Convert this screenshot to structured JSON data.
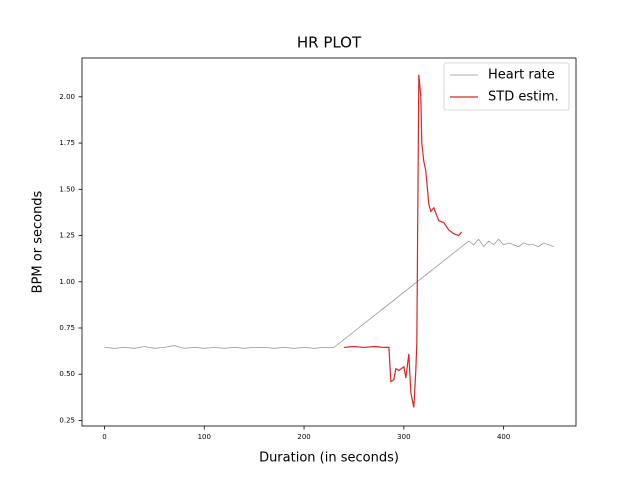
{
  "chart_data": {
    "type": "line",
    "title": "HR PLOT",
    "x_label": "Duration (in seconds)",
    "y_label": "BPM or seconds",
    "xlim": [
      -22.5,
      472.5
    ],
    "ylim": [
      0.22,
      2.21
    ],
    "xticks": [
      0,
      100,
      200,
      300,
      400
    ],
    "yticks": [
      0.25,
      {
        "value": 0.5,
        "label": "0.50"
      },
      0.75,
      {
        "value": 1.0,
        "label": "1.00"
      },
      1.25,
      {
        "value": 1.5,
        "label": "1.50"
      },
      1.75,
      {
        "value": 2.0,
        "label": "2.00"
      }
    ],
    "legend": "upper right",
    "series": [
      {
        "name": "Heart rate",
        "color": "#999999",
        "x": [
          0,
          10,
          20,
          30,
          40,
          50,
          60,
          70,
          80,
          90,
          100,
          110,
          120,
          130,
          140,
          150,
          160,
          170,
          180,
          190,
          200,
          210,
          220,
          230,
          365,
          370,
          375,
          380,
          385,
          390,
          395,
          400,
          405,
          410,
          415,
          420,
          425,
          430,
          435,
          440,
          445,
          450
        ],
        "values": [
          0.645,
          0.64,
          0.645,
          0.64,
          0.65,
          0.64,
          0.645,
          0.655,
          0.64,
          0.645,
          0.64,
          0.645,
          0.64,
          0.645,
          0.64,
          0.645,
          0.645,
          0.64,
          0.645,
          0.64,
          0.645,
          0.64,
          0.645,
          0.645,
          1.22,
          1.2,
          1.23,
          1.19,
          1.22,
          1.2,
          1.23,
          1.2,
          1.21,
          1.2,
          1.19,
          1.21,
          1.2,
          1.2,
          1.19,
          1.21,
          1.2,
          1.19
        ]
      },
      {
        "name": "STD estim.",
        "color": "#d62728",
        "x": [
          240,
          250,
          260,
          270,
          280,
          285,
          287,
          290,
          292,
          295,
          300,
          302,
          305,
          307,
          310,
          312,
          313,
          315,
          317,
          318,
          320,
          322,
          325,
          327,
          330,
          335,
          340,
          345,
          350,
          355,
          358
        ],
        "values": [
          0.645,
          0.65,
          0.645,
          0.65,
          0.645,
          0.645,
          0.46,
          0.47,
          0.53,
          0.52,
          0.54,
          0.48,
          0.61,
          0.4,
          0.32,
          0.52,
          0.67,
          2.12,
          2.0,
          1.75,
          1.65,
          1.6,
          1.42,
          1.38,
          1.4,
          1.33,
          1.32,
          1.28,
          1.26,
          1.25,
          1.27
        ]
      }
    ]
  }
}
